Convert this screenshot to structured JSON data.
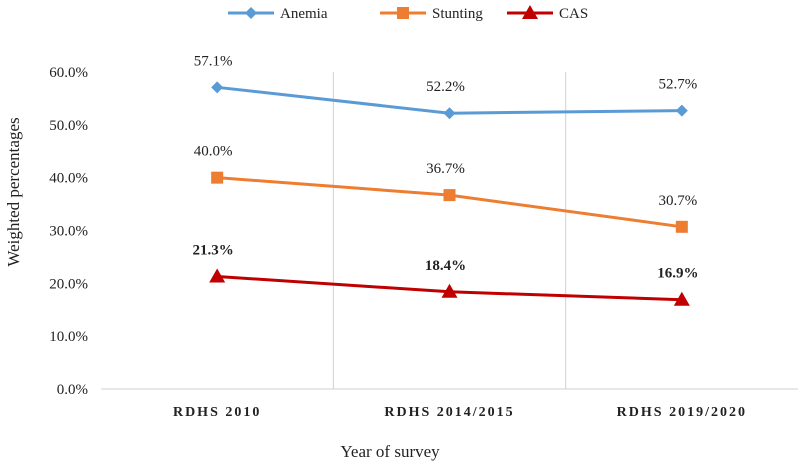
{
  "chart_data": {
    "type": "line",
    "title": "",
    "xlabel": "Year of survey",
    "ylabel": "Weighted percentages",
    "categories": [
      "RDHS 2010",
      "RDHS 2014/2015",
      "RDHS 2019/2020"
    ],
    "ylim": [
      0,
      60
    ],
    "y_ticks": [
      "0.0%",
      "10.0%",
      "20.0%",
      "30.0%",
      "40.0%",
      "50.0%",
      "60.0%"
    ],
    "legend_position": "top",
    "series": [
      {
        "name": "Anemia",
        "color": "#5b9bd5",
        "marker": "diamond",
        "values": [
          57.1,
          52.2,
          52.7
        ],
        "labels": [
          "57.1%",
          "52.2%",
          "52.7%"
        ],
        "label_bold": false
      },
      {
        "name": "Stunting",
        "color": "#ed7d31",
        "marker": "square",
        "values": [
          40.0,
          36.7,
          30.7
        ],
        "labels": [
          "40.0%",
          "36.7%",
          "30.7%"
        ],
        "label_bold": false
      },
      {
        "name": "CAS",
        "color": "#c00000",
        "marker": "triangle",
        "values": [
          21.3,
          18.4,
          16.9
        ],
        "labels": [
          "21.3%",
          "18.4%",
          "16.9%"
        ],
        "label_bold": true
      }
    ]
  }
}
